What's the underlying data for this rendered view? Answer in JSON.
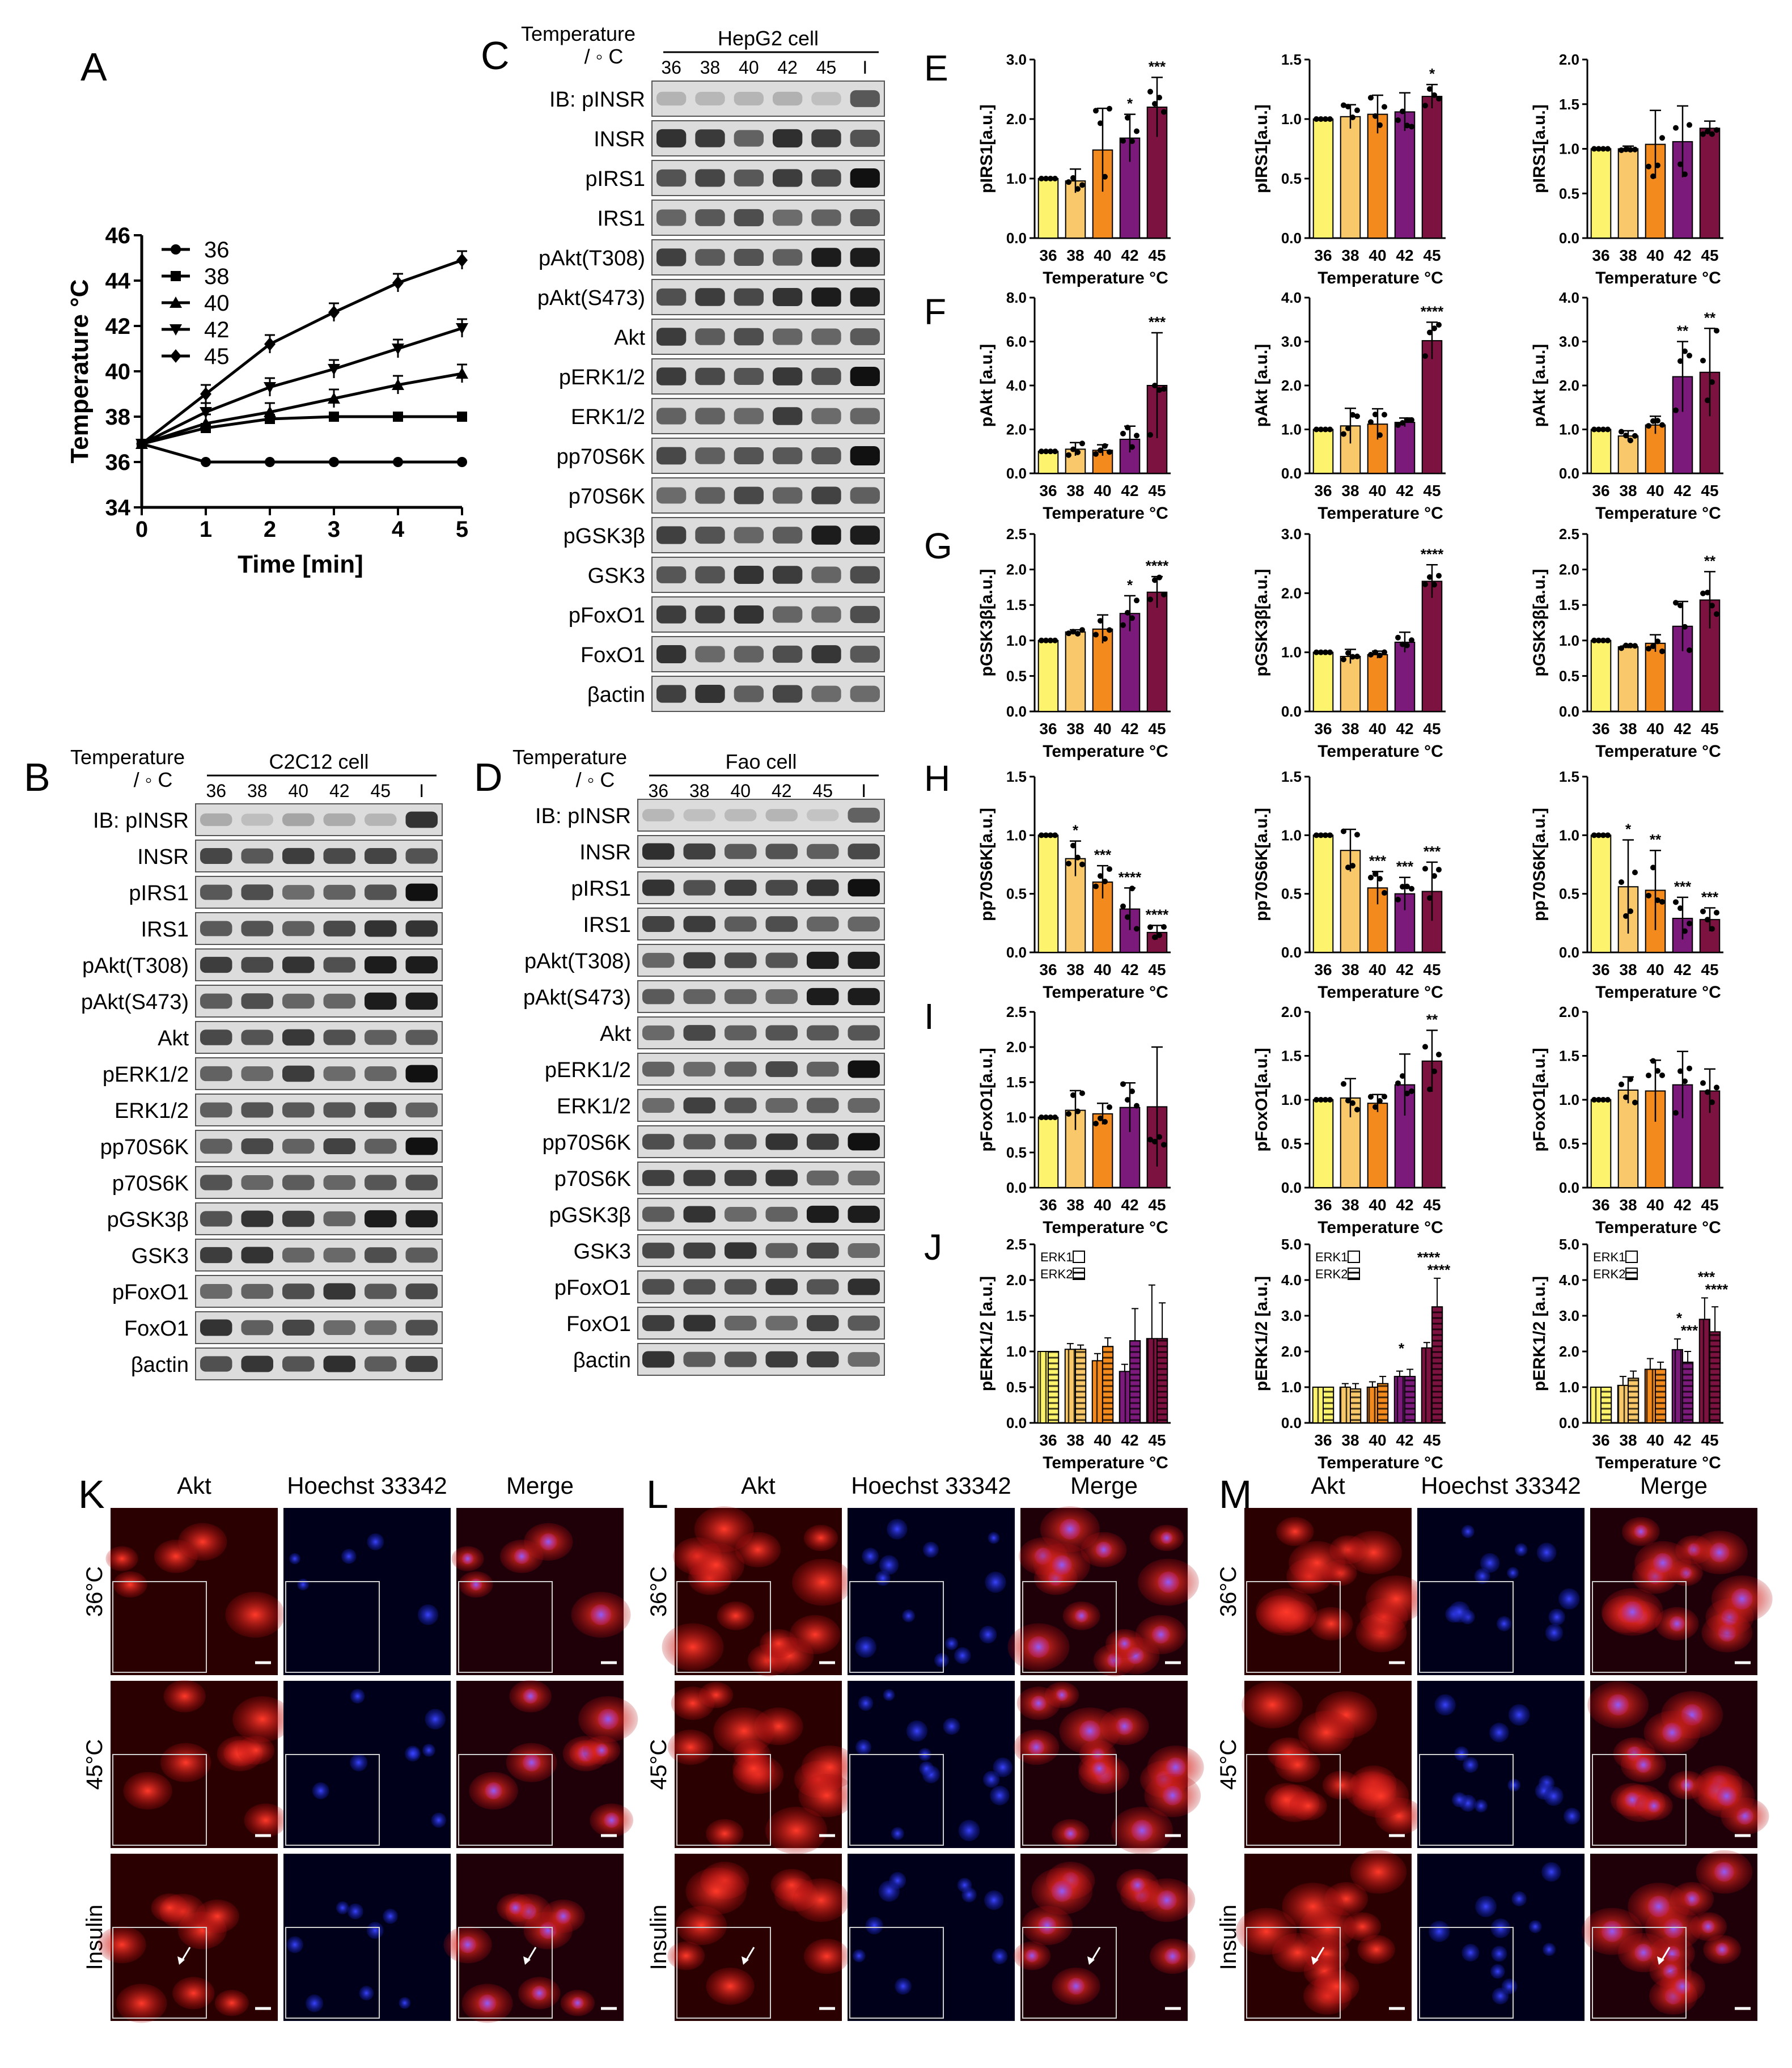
{
  "panel_letters": {
    "A": "A",
    "B": "B",
    "C": "C",
    "D": "D",
    "E": "E",
    "F": "F",
    "G": "G",
    "H": "H",
    "I": "I",
    "J": "J",
    "K": "K",
    "L": "L",
    "M": "M"
  },
  "bar_colors": [
    "#fdf36c",
    "#f8c86a",
    "#f28a1e",
    "#7b1a7a",
    "#7c1240"
  ],
  "panel_A": {
    "type": "line",
    "ylabel": "Temperature °C",
    "xlabel": "Time [min]",
    "x": [
      0,
      1,
      2,
      3,
      4,
      5
    ],
    "xticks": [
      "0",
      "1",
      "2",
      "3",
      "4",
      "5"
    ],
    "yticks": [
      "34",
      "36",
      "38",
      "40",
      "42",
      "44",
      "46"
    ],
    "ylim": [
      34,
      46
    ],
    "legend": [
      "36",
      "38",
      "40",
      "42",
      "45"
    ],
    "series": [
      {
        "name": "36",
        "values": [
          36.8,
          36.0,
          36.0,
          36.0,
          36.0,
          36.0
        ],
        "marker": "circle"
      },
      {
        "name": "38",
        "values": [
          36.8,
          37.5,
          37.9,
          38.0,
          38.0,
          38.0
        ],
        "marker": "square"
      },
      {
        "name": "40",
        "values": [
          36.8,
          37.7,
          38.2,
          38.8,
          39.4,
          39.9
        ],
        "marker": "triangle-up"
      },
      {
        "name": "42",
        "values": [
          36.8,
          38.2,
          39.3,
          40.1,
          41.0,
          41.9
        ],
        "marker": "triangle-down"
      },
      {
        "name": "45",
        "values": [
          36.8,
          39.0,
          41.2,
          42.6,
          43.9,
          44.9
        ],
        "marker": "diamond"
      }
    ]
  },
  "blots": {
    "temp_label": "Temperature",
    "temp_unit": "/ ◦ C",
    "ib": "IB:",
    "temps": [
      "36",
      "38",
      "40",
      "42",
      "45",
      "I"
    ],
    "C": {
      "cell": "HepG2 cell",
      "rows": [
        "pINSR",
        "INSR",
        "pIRS1",
        "IRS1",
        "pAkt(T308)",
        "pAkt(S473)",
        "Akt",
        "pERK1/2",
        "ERK1/2",
        "pp70S6K",
        "p70S6K",
        "pGSK3β",
        "GSK3",
        "pFoxO1",
        "FoxO1",
        "βactin"
      ]
    },
    "B": {
      "cell": "C2C12 cell",
      "rows": [
        "pINSR",
        "INSR",
        "pIRS1",
        "IRS1",
        "pAkt(T308)",
        "pAkt(S473)",
        "Akt",
        "pERK1/2",
        "ERK1/2",
        "pp70S6K",
        "p70S6K",
        "pGSK3β",
        "GSK3",
        "pFoxO1",
        "FoxO1",
        "βactin"
      ]
    },
    "D": {
      "cell": "Fao cell",
      "rows": [
        "pINSR",
        "INSR",
        "pIRS1",
        "IRS1",
        "pAkt(T308)",
        "pAkt(S473)",
        "Akt",
        "pERK1/2",
        "ERK1/2",
        "pp70S6K",
        "p70S6K",
        "pGSK3β",
        "GSK3",
        "pFoxO1",
        "FoxO1",
        "βactin"
      ]
    }
  },
  "chart_data": [
    {
      "panel": "E",
      "type": "bar",
      "ylabel": "pIRS1[a.u.]",
      "xlabel": "Temperature °C",
      "categories": [
        "36",
        "38",
        "40",
        "42",
        "45"
      ],
      "ylim": [
        0,
        3.0
      ],
      "yticks": [
        "0.0",
        "1.0",
        "2.0",
        "3.0"
      ],
      "values": [
        1.0,
        0.96,
        1.48,
        1.68,
        2.2
      ],
      "errors": [
        0,
        0.2,
        0.7,
        0.4,
        0.5
      ],
      "sig": [
        "",
        "",
        "",
        "*",
        "***"
      ]
    },
    {
      "panel": "E",
      "type": "bar",
      "ylabel": "pIRS1[a.u.]",
      "xlabel": "Temperature °C",
      "categories": [
        "36",
        "38",
        "40",
        "42",
        "45"
      ],
      "ylim": [
        0,
        1.5
      ],
      "yticks": [
        "0.0",
        "0.5",
        "1.0",
        "1.5"
      ],
      "values": [
        1.0,
        1.02,
        1.04,
        1.06,
        1.19
      ],
      "errors": [
        0,
        0.1,
        0.16,
        0.16,
        0.1
      ],
      "sig": [
        "",
        "",
        "",
        "",
        "*"
      ]
    },
    {
      "panel": "E",
      "type": "bar",
      "ylabel": "pIRS1[a.u.]",
      "xlabel": "Temperature °C",
      "categories": [
        "36",
        "38",
        "40",
        "42",
        "45"
      ],
      "ylim": [
        0,
        2.0
      ],
      "yticks": [
        "0.0",
        "0.5",
        "1.0",
        "1.5",
        "2.0"
      ],
      "values": [
        1.0,
        1.0,
        1.05,
        1.08,
        1.23
      ],
      "errors": [
        0,
        0.03,
        0.38,
        0.4,
        0.08
      ],
      "sig": [
        "",
        "",
        "",
        "",
        ""
      ]
    },
    {
      "panel": "F",
      "type": "bar",
      "ylabel": "pAkt [a.u.]",
      "xlabel": "Temperature °C",
      "categories": [
        "36",
        "38",
        "40",
        "42",
        "45"
      ],
      "ylim": [
        0,
        8.0
      ],
      "yticks": [
        "0.0",
        "2.0",
        "4.0",
        "6.0",
        "8.0"
      ],
      "values": [
        1.0,
        1.1,
        1.05,
        1.55,
        4.0
      ],
      "errors": [
        0,
        0.3,
        0.25,
        0.6,
        2.4
      ],
      "sig": [
        "",
        "",
        "",
        "",
        "***"
      ]
    },
    {
      "panel": "F",
      "type": "bar",
      "ylabel": "pAkt [a.u.]",
      "xlabel": "Temperature °C",
      "categories": [
        "36",
        "38",
        "40",
        "42",
        "45"
      ],
      "ylim": [
        0,
        4.0
      ],
      "yticks": [
        "0.0",
        "1.0",
        "2.0",
        "3.0",
        "4.0"
      ],
      "values": [
        1.0,
        1.08,
        1.12,
        1.16,
        3.02
      ],
      "errors": [
        0,
        0.4,
        0.35,
        0.1,
        0.42
      ],
      "sig": [
        "",
        "",
        "",
        "",
        "****"
      ]
    },
    {
      "panel": "F",
      "type": "bar",
      "ylabel": "pAkt [a.u.]",
      "xlabel": "Temperature °C",
      "categories": [
        "36",
        "38",
        "40",
        "42",
        "45"
      ],
      "ylim": [
        0,
        4.0
      ],
      "yticks": [
        "0.0",
        "1.0",
        "2.0",
        "3.0",
        "4.0"
      ],
      "values": [
        1.0,
        0.85,
        1.1,
        2.2,
        2.3
      ],
      "errors": [
        0,
        0.12,
        0.2,
        0.8,
        1.0
      ],
      "sig": [
        "",
        "",
        "",
        "**",
        "**"
      ]
    },
    {
      "panel": "G",
      "type": "bar",
      "ylabel": "pGSK3β[a.u.]",
      "xlabel": "Temperature °C",
      "categories": [
        "36",
        "38",
        "40",
        "42",
        "45"
      ],
      "ylim": [
        0,
        2.5
      ],
      "yticks": [
        "0.0",
        "0.5",
        "1.0",
        "1.5",
        "2.0",
        "2.5"
      ],
      "values": [
        1.0,
        1.12,
        1.16,
        1.38,
        1.68
      ],
      "errors": [
        0,
        0.03,
        0.2,
        0.25,
        0.22
      ],
      "sig": [
        "",
        "",
        "",
        "*",
        "****"
      ]
    },
    {
      "panel": "G",
      "type": "bar",
      "ylabel": "pGSK3β[a.u.]",
      "xlabel": "Temperature °C",
      "categories": [
        "36",
        "38",
        "40",
        "42",
        "45"
      ],
      "ylim": [
        0,
        3.0
      ],
      "yticks": [
        "0.0",
        "1.0",
        "2.0",
        "3.0"
      ],
      "values": [
        1.0,
        0.93,
        0.96,
        1.17,
        2.2
      ],
      "errors": [
        0,
        0.12,
        0.06,
        0.17,
        0.28
      ],
      "sig": [
        "",
        "",
        "",
        "",
        "****"
      ]
    },
    {
      "panel": "G",
      "type": "bar",
      "ylabel": "pGSK3β[a.u.]",
      "xlabel": "Temperature °C",
      "categories": [
        "36",
        "38",
        "40",
        "42",
        "45"
      ],
      "ylim": [
        0,
        2.5
      ],
      "yticks": [
        "0.0",
        "0.5",
        "1.0",
        "1.5",
        "2.0",
        "2.5"
      ],
      "values": [
        1.0,
        0.91,
        0.96,
        1.2,
        1.57
      ],
      "errors": [
        0,
        0.02,
        0.12,
        0.35,
        0.4
      ],
      "sig": [
        "",
        "",
        "",
        "",
        "**"
      ]
    },
    {
      "panel": "H",
      "type": "bar",
      "ylabel": "pp70S6K[a.u.]",
      "xlabel": "Temperature °C",
      "categories": [
        "36",
        "38",
        "40",
        "42",
        "45"
      ],
      "ylim": [
        0,
        1.5
      ],
      "yticks": [
        "0.0",
        "0.5",
        "1.0",
        "1.5"
      ],
      "values": [
        1.0,
        0.8,
        0.6,
        0.37,
        0.17
      ],
      "errors": [
        0,
        0.15,
        0.14,
        0.18,
        0.06
      ],
      "sig": [
        "",
        "*",
        "***",
        "****",
        "****"
      ]
    },
    {
      "panel": "H",
      "type": "bar",
      "ylabel": "pp70S6K[a.u.]",
      "xlabel": "Temperature °C",
      "categories": [
        "36",
        "38",
        "40",
        "42",
        "45"
      ],
      "ylim": [
        0,
        1.5
      ],
      "yticks": [
        "0.0",
        "0.5",
        "1.0",
        "1.5"
      ],
      "values": [
        1.0,
        0.87,
        0.55,
        0.5,
        0.52
      ],
      "errors": [
        0,
        0.18,
        0.14,
        0.14,
        0.25
      ],
      "sig": [
        "",
        "",
        "***",
        "***",
        "***"
      ]
    },
    {
      "panel": "H",
      "type": "bar",
      "ylabel": "pp70S6K[a.u.]",
      "xlabel": "Temperature °C",
      "categories": [
        "36",
        "38",
        "40",
        "42",
        "45"
      ],
      "ylim": [
        0,
        1.5
      ],
      "yticks": [
        "0.0",
        "0.5",
        "1.0",
        "1.5"
      ],
      "values": [
        1.0,
        0.56,
        0.53,
        0.29,
        0.28
      ],
      "errors": [
        0,
        0.4,
        0.34,
        0.18,
        0.1
      ],
      "sig": [
        "",
        "*",
        "**",
        "***",
        "***"
      ]
    },
    {
      "panel": "I",
      "type": "bar",
      "ylabel": "pFoxO1[a.u.]",
      "xlabel": "Temperature °C",
      "categories": [
        "36",
        "38",
        "40",
        "42",
        "45"
      ],
      "ylim": [
        0,
        2.5
      ],
      "yticks": [
        "0.0",
        "0.5",
        "1.0",
        "1.5",
        "2.0",
        "2.5"
      ],
      "values": [
        1.0,
        1.1,
        1.05,
        1.14,
        1.15
      ],
      "errors": [
        0,
        0.28,
        0.15,
        0.35,
        0.85
      ],
      "sig": [
        "",
        "",
        "",
        "",
        ""
      ]
    },
    {
      "panel": "I",
      "type": "bar",
      "ylabel": "pFoxO1[a.u.]",
      "xlabel": "Temperature °C",
      "categories": [
        "36",
        "38",
        "40",
        "42",
        "45"
      ],
      "ylim": [
        0,
        2.0
      ],
      "yticks": [
        "0.0",
        "0.5",
        "1.0",
        "1.5",
        "2.0"
      ],
      "values": [
        1.0,
        1.02,
        0.96,
        1.17,
        1.44
      ],
      "errors": [
        0,
        0.22,
        0.1,
        0.35,
        0.35
      ],
      "sig": [
        "",
        "",
        "",
        "",
        "**"
      ]
    },
    {
      "panel": "I",
      "type": "bar",
      "ylabel": "pFoxO1[a.u.]",
      "xlabel": "Temperature °C",
      "categories": [
        "36",
        "38",
        "40",
        "42",
        "45"
      ],
      "ylim": [
        0,
        2.0
      ],
      "yticks": [
        "0.0",
        "0.5",
        "1.0",
        "1.5",
        "2.0"
      ],
      "values": [
        1.0,
        1.11,
        1.1,
        1.17,
        1.1
      ],
      "errors": [
        0,
        0.15,
        0.35,
        0.38,
        0.25
      ],
      "sig": [
        "",
        "",
        "",
        "",
        ""
      ]
    },
    {
      "panel": "J",
      "type": "bar",
      "ylabel": "pERK1/2 [a.u.]",
      "xlabel": "Temperature °C",
      "categories": [
        "36",
        "38",
        "40",
        "42",
        "45"
      ],
      "ylim": [
        0,
        2.5
      ],
      "yticks": [
        "0.0",
        "0.5",
        "1.0",
        "1.5",
        "2.0",
        "2.5"
      ],
      "legend": [
        "ERK1",
        "ERK2"
      ],
      "series": [
        {
          "name": "ERK1",
          "values": [
            1.0,
            1.03,
            0.87,
            0.72,
            1.18
          ],
          "errors": [
            0,
            0.08,
            0.1,
            0.1,
            0.75
          ]
        },
        {
          "name": "ERK2",
          "values": [
            1.0,
            1.03,
            1.07,
            1.15,
            1.18
          ],
          "errors": [
            0,
            0.06,
            0.12,
            0.45,
            0.5
          ]
        }
      ],
      "sig": [
        "",
        "",
        "",
        "",
        ""
      ]
    },
    {
      "panel": "J",
      "type": "bar",
      "ylabel": "pERK1/2 [a.u.]",
      "xlabel": "Temperature °C",
      "categories": [
        "36",
        "38",
        "40",
        "42",
        "45"
      ],
      "ylim": [
        0,
        5.0
      ],
      "yticks": [
        "0.0",
        "1.0",
        "2.0",
        "3.0",
        "4.0",
        "5.0"
      ],
      "legend": [
        "ERK1",
        "ERK2"
      ],
      "series": [
        {
          "name": "ERK1",
          "values": [
            1.0,
            1.0,
            1.0,
            1.3,
            2.1
          ],
          "errors": [
            0,
            0.1,
            0.15,
            0.15,
            0.15
          ]
        },
        {
          "name": "ERK2",
          "values": [
            1.0,
            0.95,
            1.1,
            1.3,
            3.25
          ],
          "errors": [
            0,
            0.15,
            0.2,
            0.2,
            0.8
          ]
        }
      ],
      "sig": [
        "",
        "",
        "",
        "*",
        "****"
      ],
      "sig2": [
        "",
        "",
        "",
        "",
        "****"
      ]
    },
    {
      "panel": "J",
      "type": "bar",
      "ylabel": "pERK1/2 [a.u.]",
      "xlabel": "Temperature °C",
      "categories": [
        "36",
        "38",
        "40",
        "42",
        "45"
      ],
      "ylim": [
        0,
        5.0
      ],
      "yticks": [
        "0.0",
        "1.0",
        "2.0",
        "3.0",
        "4.0",
        "5.0"
      ],
      "legend": [
        "ERK1",
        "ERK2"
      ],
      "series": [
        {
          "name": "ERK1",
          "values": [
            1.0,
            1.05,
            1.5,
            2.05,
            2.9
          ],
          "errors": [
            0,
            0.25,
            0.3,
            0.3,
            0.6
          ]
        },
        {
          "name": "ERK2",
          "values": [
            1.0,
            1.25,
            1.5,
            1.7,
            2.55
          ],
          "errors": [
            0,
            0.2,
            0.2,
            0.3,
            0.7
          ]
        }
      ],
      "sig": [
        "",
        "",
        "",
        "*",
        "***"
      ],
      "sig2": [
        "",
        "",
        "",
        "***",
        "****"
      ]
    }
  ],
  "microscopy": {
    "columns": [
      "Akt",
      "Hoechst 33342",
      "Merge"
    ],
    "rows": [
      "36°C",
      "45°C",
      "Insulin"
    ]
  }
}
